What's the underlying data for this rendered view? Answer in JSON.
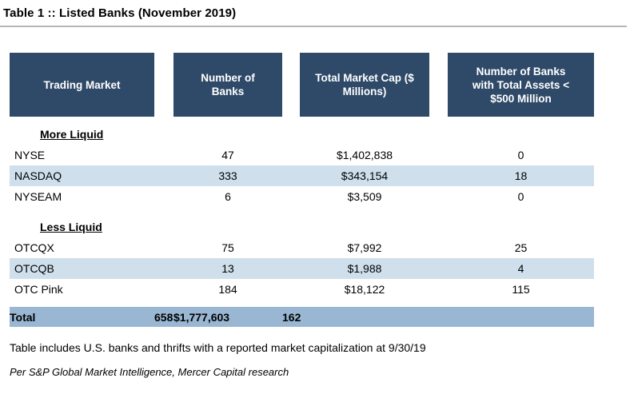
{
  "title": "Table 1 :: Listed Banks (November 2019)",
  "table": {
    "headers": {
      "trading_market": "Trading Market",
      "number_of_banks": "Number of Banks",
      "total_market_cap": "Total Market Cap ($ Millions)",
      "small_banks": "Number of Banks with Total Assets < $500 Million"
    },
    "sections": [
      {
        "label": "More Liquid",
        "rows": [
          {
            "market": "NYSE",
            "banks": "47",
            "market_cap": "$1,402,838",
            "small_banks": "0"
          },
          {
            "market": "NASDAQ",
            "banks": "333",
            "market_cap": "$343,154",
            "small_banks": "18"
          },
          {
            "market": "NYSEAM",
            "banks": "6",
            "market_cap": "$3,509",
            "small_banks": "0"
          }
        ]
      },
      {
        "label": "Less Liquid",
        "rows": [
          {
            "market": "OTCQX",
            "banks": "75",
            "market_cap": "$7,992",
            "small_banks": "25"
          },
          {
            "market": "OTCQB",
            "banks": "13",
            "market_cap": "$1,988",
            "small_banks": "4"
          },
          {
            "market": "OTC Pink",
            "banks": "184",
            "market_cap": "$18,122",
            "small_banks": "115"
          }
        ]
      }
    ],
    "total": {
      "label": "Total",
      "banks": "658",
      "market_cap": "$1,777,603",
      "small_banks": "162"
    }
  },
  "footnote": "Table includes U.S. banks and thrifts with a reported market capitalization at 9/30/19",
  "source": "Per S&P Global Market Intelligence, Mercer Capital research",
  "colors": {
    "header_bg": "#2F4A68",
    "header_text": "#FFFFFF",
    "stripe_bg": "#CFE0EC",
    "total_bg": "#99B7D3",
    "rule": "#B7B7B7"
  },
  "chart_data": {
    "type": "table",
    "title": "Table 1 :: Listed Banks (November 2019)",
    "columns": [
      "Trading Market",
      "Number of Banks",
      "Total Market Cap ($ Millions)",
      "Number of Banks with Total Assets < $500 Million"
    ],
    "rows": [
      [
        "More Liquid",
        null,
        null,
        null
      ],
      [
        "NYSE",
        47,
        1402838,
        0
      ],
      [
        "NASDAQ",
        333,
        343154,
        18
      ],
      [
        "NYSEAM",
        6,
        3509,
        0
      ],
      [
        "Less Liquid",
        null,
        null,
        null
      ],
      [
        "OTCQX",
        75,
        7992,
        25
      ],
      [
        "OTCQB",
        13,
        1988,
        4
      ],
      [
        "OTC Pink",
        184,
        18122,
        115
      ],
      [
        "Total",
        658,
        1777603,
        162
      ]
    ]
  }
}
